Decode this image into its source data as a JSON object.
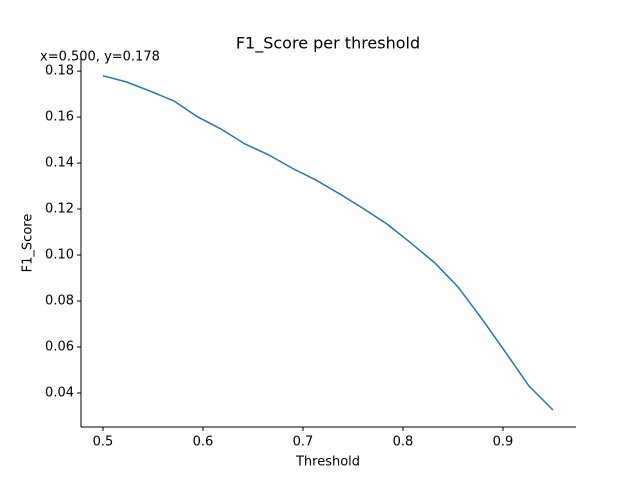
{
  "chart_data": {
    "type": "line",
    "title": "F1_Score per threshold",
    "annotation": "x=0.500, y=0.178",
    "xlabel": "Threshold",
    "ylabel": "F1_Score",
    "x": [
      0.5,
      0.524,
      0.547,
      0.571,
      0.595,
      0.618,
      0.642,
      0.666,
      0.689,
      0.713,
      0.737,
      0.761,
      0.784,
      0.808,
      0.832,
      0.855,
      0.879,
      0.903,
      0.926,
      0.95
    ],
    "series": [
      {
        "name": "F1_Score",
        "color": "#1f77b4",
        "values": [
          0.178,
          0.1752,
          0.1713,
          0.167,
          0.16,
          0.1548,
          0.1483,
          0.1435,
          0.1378,
          0.1326,
          0.1265,
          0.12,
          0.1135,
          0.1052,
          0.0965,
          0.0861,
          0.0722,
          0.0574,
          0.043,
          0.0326
        ]
      }
    ],
    "xlim": [
      0.478,
      0.973
    ],
    "ylim": [
      0.0252,
      0.1857
    ],
    "xticks": [
      0.5,
      0.6,
      0.7,
      0.8,
      0.9
    ],
    "yticks": [
      {
        "value": 0.04,
        "label": "0.04"
      },
      {
        "value": 0.06,
        "label": "0.06"
      },
      {
        "value": 0.08,
        "label": "0.08"
      },
      {
        "value": 0.1,
        "label": "0.10"
      },
      {
        "value": 0.12,
        "label": "0.12"
      },
      {
        "value": 0.14,
        "label": "0.14"
      },
      {
        "value": 0.16,
        "label": "0.16"
      },
      {
        "value": 0.18,
        "label": "0.18"
      }
    ],
    "grid": false
  }
}
